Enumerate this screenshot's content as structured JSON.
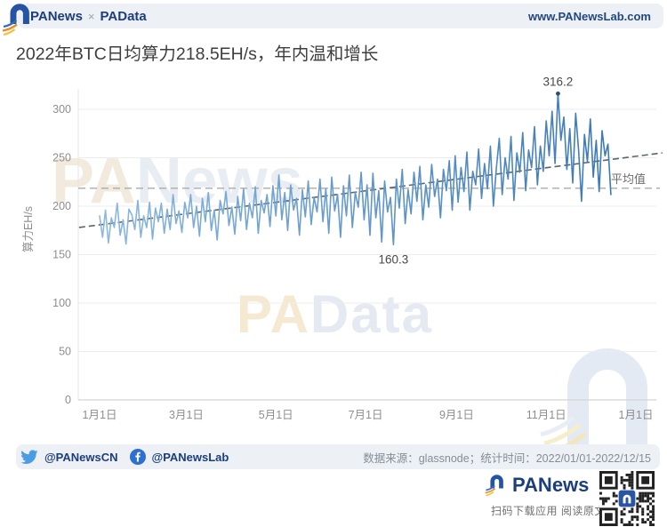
{
  "header": {
    "brand_primary": "PANews",
    "brand_separator": "×",
    "brand_secondary": "PAData",
    "website": "www.PANewsLab.com"
  },
  "title": "2022年BTC日均算力218.5EH/s，年内温和增长",
  "chart_data": {
    "type": "line",
    "title": "2022年BTC日均算力218.5EH/s，年内温和增长",
    "ylabel": "算力EH/s",
    "xlabel": "",
    "unit": "EH/s",
    "grid": true,
    "ylim": [
      0,
      330
    ],
    "y_ticks": [
      0,
      50,
      100,
      150,
      200,
      250,
      300
    ],
    "x_tick_labels": [
      "1月1日",
      "3月1日",
      "5月1日",
      "7月1日",
      "9月1日",
      "11月1日",
      "1月1日"
    ],
    "x_tick_days": [
      0,
      59,
      120,
      181,
      243,
      304,
      365
    ],
    "xlim_days": [
      0,
      365
    ],
    "series": [
      {
        "name": "BTC日均算力",
        "start_day": 0,
        "day_step": 2,
        "values": [
          190,
          168,
          196,
          162,
          188,
          178,
          203,
          170,
          186,
          161,
          197,
          191,
          176,
          206,
          168,
          190,
          178,
          204,
          166,
          198,
          184,
          203,
          172,
          197,
          176,
          212,
          182,
          195,
          173,
          204,
          188,
          212,
          178,
          200,
          169,
          208,
          184,
          214,
          175,
          196,
          165,
          206,
          192,
          215,
          180,
          199,
          171,
          210,
          185,
          218,
          176,
          203,
          188,
          220,
          172,
          206,
          193,
          212,
          179,
          221,
          190,
          232,
          186,
          214,
          175,
          222,
          196,
          208,
          170,
          217,
          189,
          226,
          181,
          209,
          194,
          228,
          184,
          218,
          172,
          230,
          195,
          212,
          168,
          221,
          190,
          232,
          178,
          214,
          199,
          235,
          186,
          222,
          170,
          234,
          188,
          216,
          163,
          226,
          194,
          209,
          160.3,
          228,
          198,
          238,
          182,
          217,
          192,
          235,
          205,
          241,
          186,
          222,
          199,
          243,
          210,
          228,
          188,
          238,
          216,
          247,
          196,
          252,
          204,
          240,
          215,
          256,
          196,
          236,
          222,
          259,
          208,
          244,
          218,
          262,
          200,
          239,
          270,
          212,
          250,
          228,
          272,
          206,
          255,
          235,
          276,
          216,
          258,
          240,
          282,
          222,
          262,
          236,
          288,
          252,
          298,
          244,
          316.2,
          268,
          292,
          238,
          280,
          224,
          296,
          258,
          205,
          274,
          246,
          290,
          230,
          268,
          215,
          278,
          252,
          264,
          212
        ]
      }
    ],
    "average_line": {
      "value": 218.5,
      "label": "平均值"
    },
    "trend_line": {
      "start_day": -14,
      "start_value": 178,
      "end_day": 383,
      "end_value": 255
    },
    "annotations": [
      {
        "text": "316.2",
        "day": 312,
        "value": 316.2,
        "position": "above",
        "type": "max"
      },
      {
        "text": "160.3",
        "day": 200,
        "value": 160.3,
        "position": "below",
        "type": "min"
      }
    ],
    "line_gradient": [
      "#8cb9df",
      "#3c79b5"
    ]
  },
  "watermarks": {
    "top": "PANews",
    "middle": "PAData"
  },
  "footer": {
    "twitter_handle": "@PANewsCN",
    "facebook_handle": "@PANewsLab",
    "source_text": "数据来源：glassnode；统计时间：2022/01/01-2022/12/15"
  },
  "bottom_bar": {
    "brand": "PANews",
    "caption": "扫码下载应用 阅读原文"
  },
  "colors": {
    "brand_navy": "#1c3e7c",
    "bar_background": "#edf0f4",
    "line_start": "#8cb9df",
    "line_end": "#3c79b5",
    "trend_line": "#5a6470",
    "average_line": "#ababab",
    "axis_text": "#8e8e8e",
    "title_text": "#3e3e3e"
  }
}
